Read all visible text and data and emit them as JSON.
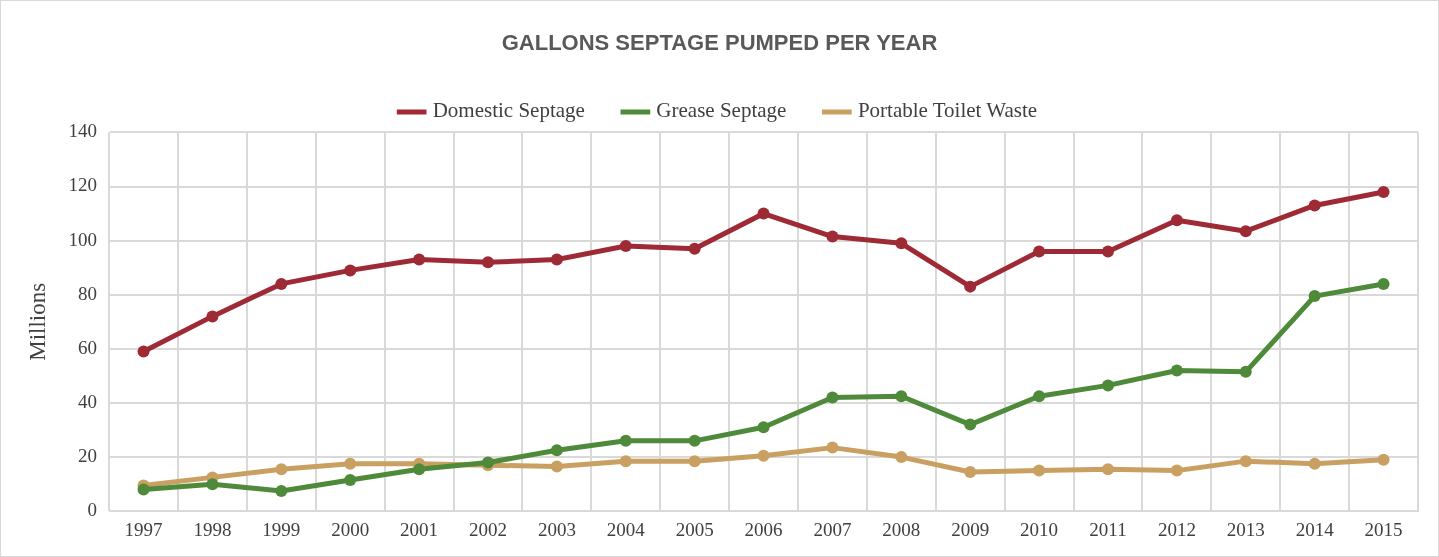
{
  "chart_data": {
    "type": "line",
    "title": "GALLONS SEPTAGE PUMPED PER YEAR",
    "ylabel": "Millions",
    "categories": [
      "1997",
      "1998",
      "1999",
      "2000",
      "2001",
      "2002",
      "2003",
      "2004",
      "2005",
      "2006",
      "2007",
      "2008",
      "2009",
      "2010",
      "2011",
      "2012",
      "2013",
      "2014",
      "2015"
    ],
    "series": [
      {
        "name": "Domestic Septage",
        "color": "#9e2a35",
        "values": [
          59,
          72,
          84,
          89,
          93,
          92,
          93,
          98,
          97,
          110,
          101.5,
          99,
          83,
          96,
          96,
          107.5,
          103.5,
          113,
          118
        ]
      },
      {
        "name": "Grease Septage",
        "color": "#4e8a3a",
        "values": [
          8,
          10,
          7.5,
          11.5,
          15.5,
          18,
          22.5,
          26,
          26,
          31,
          42,
          42.5,
          32,
          42.5,
          46.5,
          52,
          51.5,
          79.5,
          84
        ]
      },
      {
        "name": "Portable Toilet Waste",
        "color": "#c9a062",
        "values": [
          9.5,
          12.5,
          15.5,
          17.5,
          17.5,
          17,
          16.5,
          18.5,
          18.5,
          20.5,
          23.5,
          20,
          14.5,
          15,
          15.5,
          15,
          18.5,
          17.5,
          19
        ]
      }
    ],
    "ylim": [
      0,
      140
    ],
    "yticks": [
      0,
      20,
      40,
      60,
      80,
      100,
      120,
      140
    ],
    "grid": true,
    "legend": "top",
    "marker": "circle",
    "line_style": "solid"
  }
}
